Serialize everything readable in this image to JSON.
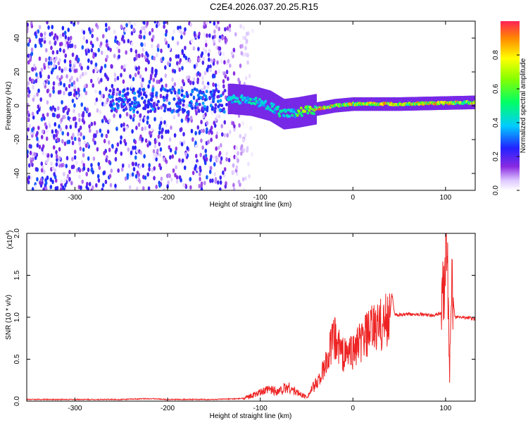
{
  "title": "C2E4.2026.037.20.25.R15",
  "chart_data": [
    {
      "type": "heatmap",
      "xlabel": "Height of straight line (km)",
      "ylabel": "Frequency (Hz)",
      "xlim": [
        -352,
        132
      ],
      "ylim": [
        -50,
        50
      ],
      "xticks": [
        -300,
        -200,
        -100,
        0,
        100
      ],
      "yticks": [
        -40,
        -20,
        0,
        20,
        40
      ],
      "colorbar": {
        "label": "Normalized spectral amplitude",
        "range": [
          0,
          1
        ],
        "ticks": [
          "0.0",
          "0.2",
          "0.4",
          "0.6",
          "0.8"
        ]
      },
      "ridge": {
        "description": "narrow high-amplitude feature near 0 Hz",
        "points": [
          {
            "x": -130,
            "y": 4
          },
          {
            "x": -110,
            "y": 3
          },
          {
            "x": -90,
            "y": 0
          },
          {
            "x": -75,
            "y": -5
          },
          {
            "x": -60,
            "y": -4
          },
          {
            "x": -40,
            "y": -2
          },
          {
            "x": -20,
            "y": 0
          },
          {
            "x": 0,
            "y": 1
          },
          {
            "x": 50,
            "y": 1
          },
          {
            "x": 132,
            "y": 2
          }
        ],
        "noise_region": {
          "x": [
            -352,
            -115
          ],
          "amplitude_max": 0.3
        }
      }
    },
    {
      "type": "line",
      "xlabel": "Height of straight line (km)",
      "ylabel": "SNR (10 * v/v)",
      "yscale_label": "(x10",
      "yscale_exp": "4",
      "yscale_close": ")",
      "xlim": [
        -352,
        132
      ],
      "ylim": [
        0,
        2.0
      ],
      "xticks": [
        -300,
        -200,
        -100,
        0,
        100
      ],
      "yticks": [
        "0.0",
        "0.5",
        "1.0",
        "1.5",
        "2.0"
      ],
      "series": [
        {
          "color": "#ee2222",
          "points": [
            [
              -352,
              0.02
            ],
            [
              -300,
              0.02
            ],
            [
              -250,
              0.02
            ],
            [
              -220,
              0.03
            ],
            [
              -200,
              0.02
            ],
            [
              -150,
              0.02
            ],
            [
              -120,
              0.03
            ],
            [
              -110,
              0.06
            ],
            [
              -100,
              0.1
            ],
            [
              -90,
              0.14
            ],
            [
              -80,
              0.12
            ],
            [
              -70,
              0.17
            ],
            [
              -60,
              0.1
            ],
            [
              -50,
              0.05
            ],
            [
              -40,
              0.2
            ],
            [
              -30,
              0.4
            ],
            [
              -25,
              0.62
            ],
            [
              -20,
              0.75
            ],
            [
              -15,
              0.65
            ],
            [
              -10,
              0.55
            ],
            [
              0,
              0.6
            ],
            [
              10,
              0.72
            ],
            [
              20,
              0.84
            ],
            [
              30,
              0.9
            ],
            [
              40,
              1.0
            ],
            [
              42,
              1.3
            ],
            [
              45,
              1.03
            ],
            [
              55,
              1.03
            ],
            [
              70,
              1.04
            ],
            [
              85,
              1.02
            ],
            [
              95,
              1.05
            ],
            [
              100,
              1.6
            ],
            [
              102,
              2.0
            ],
            [
              104,
              0.1
            ],
            [
              106,
              1.5
            ],
            [
              110,
              1.0
            ],
            [
              120,
              1.0
            ],
            [
              132,
              0.98
            ]
          ]
        }
      ]
    }
  ]
}
